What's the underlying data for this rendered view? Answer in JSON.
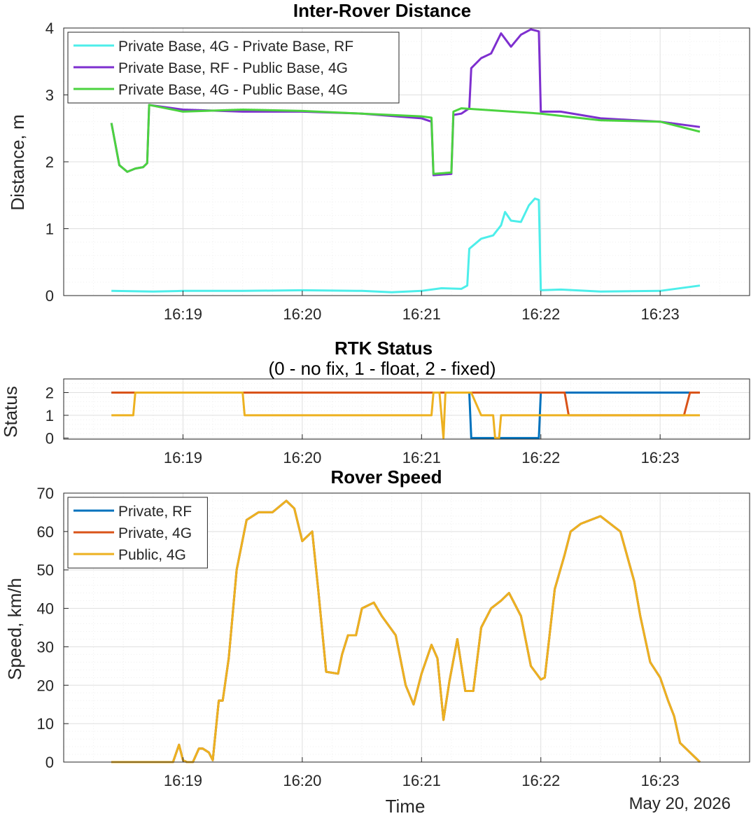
{
  "date_label": "May 20, 2026",
  "x_ticks": [
    "16:19",
    "16:20",
    "16:21",
    "16:22",
    "16:23"
  ],
  "chart_data": [
    {
      "type": "line",
      "title": "Inter-Rover Distance",
      "subtitle": "",
      "xlabel": "",
      "ylabel": "Distance, m",
      "xlim": [
        "16:18:00",
        "16:23:45"
      ],
      "ylim": [
        0,
        4
      ],
      "y_ticks": [
        0,
        1,
        2,
        3,
        4
      ],
      "grid": true,
      "legend": "top-left",
      "series": [
        {
          "name": "Private Base, 4G - Private Base, RF",
          "color": "#4DEEEA",
          "x": [
            "16:18:24",
            "16:18:45",
            "16:19:00",
            "16:19:30",
            "16:20:00",
            "16:20:30",
            "16:20:45",
            "16:21:00",
            "16:21:10",
            "16:21:20",
            "16:21:23",
            "16:21:24",
            "16:21:30",
            "16:21:36",
            "16:21:40",
            "16:21:42",
            "16:21:45",
            "16:21:50",
            "16:21:54",
            "16:21:57",
            "16:21:59",
            "16:22:00",
            "16:22:10",
            "16:22:30",
            "16:23:00",
            "16:23:20"
          ],
          "values": [
            0.07,
            0.06,
            0.07,
            0.07,
            0.08,
            0.07,
            0.05,
            0.07,
            0.11,
            0.1,
            0.15,
            0.7,
            0.85,
            0.9,
            1.05,
            1.25,
            1.12,
            1.1,
            1.35,
            1.45,
            1.43,
            0.08,
            0.09,
            0.06,
            0.07,
            0.15
          ]
        },
        {
          "name": "Private Base, RF - Public Base, 4G",
          "color": "#7E2FCF",
          "x": [
            "16:18:24",
            "16:18:28",
            "16:18:32",
            "16:18:36",
            "16:18:40",
            "16:18:42",
            "16:18:43",
            "16:19:00",
            "16:19:30",
            "16:20:00",
            "16:20:30",
            "16:21:00",
            "16:21:05",
            "16:21:06",
            "16:21:15",
            "16:21:16",
            "16:21:20",
            "16:21:24",
            "16:21:25",
            "16:21:30",
            "16:21:35",
            "16:21:40",
            "16:21:45",
            "16:21:50",
            "16:21:55",
            "16:21:59",
            "16:22:00",
            "16:22:10",
            "16:22:30",
            "16:23:00",
            "16:23:20"
          ],
          "values": [
            2.58,
            1.95,
            1.85,
            1.9,
            1.92,
            1.98,
            2.85,
            2.78,
            2.75,
            2.75,
            2.72,
            2.65,
            2.6,
            1.8,
            1.82,
            2.7,
            2.72,
            2.8,
            3.4,
            3.55,
            3.62,
            3.92,
            3.72,
            3.9,
            3.98,
            3.95,
            2.75,
            2.75,
            2.65,
            2.6,
            2.52
          ]
        },
        {
          "name": "Private Base, 4G - Public Base, 4G",
          "color": "#4BD33F",
          "x": [
            "16:18:24",
            "16:18:28",
            "16:18:32",
            "16:18:36",
            "16:18:40",
            "16:18:42",
            "16:18:43",
            "16:19:00",
            "16:19:30",
            "16:20:00",
            "16:20:30",
            "16:21:00",
            "16:21:05",
            "16:21:06",
            "16:21:15",
            "16:21:16",
            "16:21:20",
            "16:21:30",
            "16:22:00",
            "16:22:30",
            "16:23:00",
            "16:23:20"
          ],
          "values": [
            2.58,
            1.95,
            1.85,
            1.9,
            1.92,
            1.98,
            2.85,
            2.75,
            2.78,
            2.76,
            2.72,
            2.68,
            2.66,
            1.82,
            1.84,
            2.75,
            2.8,
            2.78,
            2.72,
            2.62,
            2.6,
            2.45
          ]
        }
      ]
    },
    {
      "type": "line",
      "title": "RTK Status",
      "subtitle": "(0 - no fix, 1 - float, 2 - fixed)",
      "xlabel": "",
      "ylabel": "Status",
      "xlim": [
        "16:18:00",
        "16:23:45"
      ],
      "ylim": [
        -0.05,
        2.6
      ],
      "y_ticks": [
        0,
        1,
        2
      ],
      "grid": true,
      "legend": "none",
      "series": [
        {
          "name": "Private, RF",
          "color": "#0072BD",
          "x": [
            "16:18:24",
            "16:21:24",
            "16:21:25",
            "16:21:59",
            "16:22:00",
            "16:23:20"
          ],
          "values": [
            2,
            2,
            0,
            0,
            2,
            2
          ]
        },
        {
          "name": "Private, 4G",
          "color": "#D95319",
          "x": [
            "16:18:24",
            "16:22:12",
            "16:22:14",
            "16:23:12",
            "16:23:15",
            "16:23:20"
          ],
          "values": [
            2,
            2,
            1,
            1,
            2,
            2
          ]
        },
        {
          "name": "Public, 4G",
          "color": "#EDB120",
          "x": [
            "16:18:24",
            "16:18:35",
            "16:18:36",
            "16:19:30",
            "16:19:31",
            "16:21:05",
            "16:21:06",
            "16:21:09",
            "16:21:11",
            "16:21:12",
            "16:21:20",
            "16:21:25",
            "16:21:30",
            "16:21:36",
            "16:21:37",
            "16:21:39",
            "16:21:40",
            "16:23:20"
          ],
          "values": [
            1,
            1,
            2,
            2,
            1,
            1,
            2,
            2,
            0,
            2,
            2,
            2,
            1,
            1,
            0,
            0,
            1,
            1
          ]
        }
      ]
    },
    {
      "type": "line",
      "title": "Rover Speed",
      "subtitle": "",
      "xlabel": "Time",
      "ylabel": "Speed, km/h",
      "xlim": [
        "16:18:00",
        "16:23:45"
      ],
      "ylim": [
        0,
        70
      ],
      "y_ticks": [
        0,
        10,
        20,
        30,
        40,
        50,
        60,
        70
      ],
      "grid": true,
      "legend": "top-left",
      "series": [
        {
          "name": "Private, RF",
          "color": "#0072BD",
          "x": [
            "16:18:24",
            "16:18:55",
            "16:18:58",
            "16:19:00",
            "16:19:02",
            "16:19:05",
            "16:19:08",
            "16:19:10",
            "16:19:13",
            "16:19:15",
            "16:19:18",
            "16:19:20",
            "16:19:23",
            "16:19:27",
            "16:19:32",
            "16:19:38",
            "16:19:45",
            "16:19:52",
            "16:19:56",
            "16:20:00",
            "16:20:05",
            "16:20:08",
            "16:20:12",
            "16:20:18",
            "16:20:20",
            "16:20:23",
            "16:20:27",
            "16:20:30",
            "16:20:36",
            "16:20:40",
            "16:20:47",
            "16:20:52",
            "16:20:56",
            "16:21:00",
            "16:21:05",
            "16:21:08",
            "16:21:11",
            "16:21:14",
            "16:21:18",
            "16:21:22",
            "16:21:26",
            "16:21:30",
            "16:21:35",
            "16:21:40",
            "16:21:44",
            "16:21:50",
            "16:21:55",
            "16:22:00",
            "16:22:02",
            "16:22:07",
            "16:22:12",
            "16:22:15",
            "16:22:20",
            "16:22:30",
            "16:22:40",
            "16:22:47",
            "16:22:50",
            "16:22:55",
            "16:23:00",
            "16:23:04",
            "16:23:07",
            "16:23:10",
            "16:23:20"
          ],
          "values": [
            0,
            0,
            4.5,
            0.5,
            0,
            0,
            3.5,
            3.5,
            2.5,
            0.5,
            16,
            16,
            27,
            50,
            63,
            65,
            65,
            68,
            66,
            57.5,
            60,
            45,
            23.5,
            23,
            28,
            33,
            33,
            40,
            41.5,
            38,
            33,
            20,
            15,
            23,
            30.5,
            27,
            11,
            21,
            32,
            18.5,
            18.5,
            35,
            40,
            42,
            44,
            38,
            25,
            21.5,
            22,
            45,
            54,
            60,
            62,
            64,
            60,
            47,
            38,
            26,
            22,
            16,
            12,
            5,
            0
          ]
        },
        {
          "name": "Private, 4G",
          "color": "#D95319",
          "x": [
            "16:18:24",
            "16:18:55",
            "16:18:58",
            "16:19:00",
            "16:19:02",
            "16:19:05",
            "16:19:08",
            "16:19:10",
            "16:19:13",
            "16:19:15",
            "16:19:18",
            "16:19:20",
            "16:19:23",
            "16:19:27",
            "16:19:32",
            "16:19:38",
            "16:19:45",
            "16:19:52",
            "16:19:56",
            "16:20:00",
            "16:20:05",
            "16:20:08",
            "16:20:12",
            "16:20:18",
            "16:20:20",
            "16:20:23",
            "16:20:27",
            "16:20:30",
            "16:20:36",
            "16:20:40",
            "16:20:47",
            "16:20:52",
            "16:20:56",
            "16:21:00",
            "16:21:05",
            "16:21:08",
            "16:21:11",
            "16:21:14",
            "16:21:18",
            "16:21:22",
            "16:21:26",
            "16:21:30",
            "16:21:35",
            "16:21:40",
            "16:21:44",
            "16:21:50",
            "16:21:55",
            "16:22:00",
            "16:22:02",
            "16:22:07",
            "16:22:12",
            "16:22:15",
            "16:22:20",
            "16:22:30",
            "16:22:40",
            "16:22:47",
            "16:22:50",
            "16:22:55",
            "16:23:00",
            "16:23:04",
            "16:23:07",
            "16:23:10",
            "16:23:20"
          ],
          "values": [
            0,
            0,
            4.5,
            0.5,
            0,
            0,
            3.5,
            3.5,
            2.5,
            0.5,
            16,
            16,
            27,
            50,
            63,
            65,
            65,
            68,
            66,
            57.5,
            60,
            45,
            23.5,
            23,
            28,
            33,
            33,
            40,
            41.5,
            38,
            33,
            20,
            15,
            23,
            30.5,
            27,
            11,
            21,
            32,
            18.5,
            18.5,
            35,
            40,
            42,
            44,
            38,
            25,
            21.5,
            22,
            45,
            54,
            60,
            62,
            64,
            60,
            47,
            38,
            26,
            22,
            16,
            12,
            5,
            0
          ]
        },
        {
          "name": "Public, 4G",
          "color": "#EDB120",
          "x": [
            "16:18:24",
            "16:18:55",
            "16:18:58",
            "16:19:00",
            "16:19:02",
            "16:19:05",
            "16:19:08",
            "16:19:10",
            "16:19:13",
            "16:19:15",
            "16:19:18",
            "16:19:20",
            "16:19:23",
            "16:19:27",
            "16:19:32",
            "16:19:38",
            "16:19:45",
            "16:19:52",
            "16:19:56",
            "16:20:00",
            "16:20:05",
            "16:20:08",
            "16:20:12",
            "16:20:18",
            "16:20:20",
            "16:20:23",
            "16:20:27",
            "16:20:30",
            "16:20:36",
            "16:20:40",
            "16:20:47",
            "16:20:52",
            "16:20:56",
            "16:21:00",
            "16:21:05",
            "16:21:08",
            "16:21:11",
            "16:21:14",
            "16:21:18",
            "16:21:22",
            "16:21:26",
            "16:21:30",
            "16:21:35",
            "16:21:40",
            "16:21:44",
            "16:21:50",
            "16:21:55",
            "16:22:00",
            "16:22:02",
            "16:22:07",
            "16:22:12",
            "16:22:15",
            "16:22:20",
            "16:22:30",
            "16:22:40",
            "16:22:47",
            "16:22:50",
            "16:22:55",
            "16:23:00",
            "16:23:04",
            "16:23:07",
            "16:23:10",
            "16:23:20"
          ],
          "values": [
            0,
            0,
            4.5,
            0.5,
            0,
            0,
            3.5,
            3.5,
            2.5,
            0.5,
            16,
            16,
            27,
            50,
            63,
            65,
            65,
            68,
            66,
            57.5,
            60,
            45,
            23.5,
            23,
            28,
            33,
            33,
            40,
            41.5,
            38,
            33,
            20,
            15,
            23,
            30.5,
            27,
            11,
            21,
            32,
            18.5,
            18.5,
            35,
            40,
            42,
            44,
            38,
            25,
            21.5,
            22,
            45,
            54,
            60,
            62,
            64,
            60,
            47,
            38,
            26,
            22,
            16,
            12,
            5,
            0
          ]
        }
      ]
    }
  ]
}
